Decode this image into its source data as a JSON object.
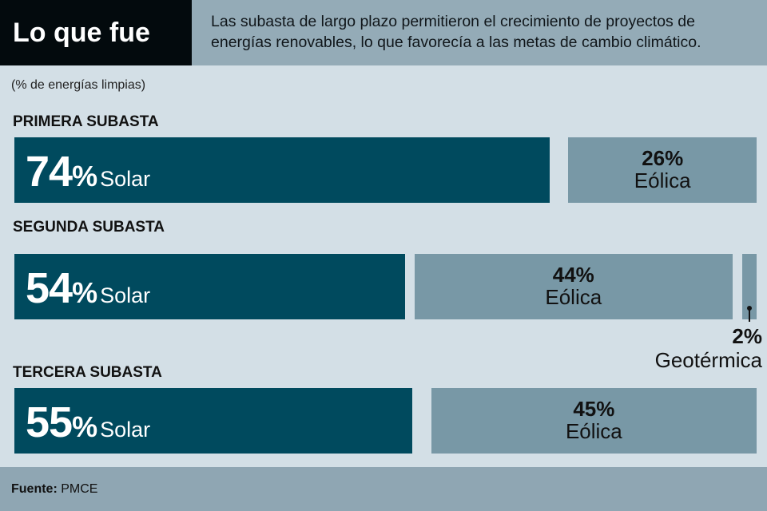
{
  "header": {
    "title": "Lo que fue",
    "description_line1": "Las subasta de largo plazo permitieron el crecimiento de proyectos de",
    "description_line2": "energías renovables, lo que favorecía a las metas de cambio climático."
  },
  "footer": {
    "label": "Fuente:",
    "value": "PMCE"
  },
  "chart_data": {
    "type": "bar",
    "subtitle": "(% de energías limpias)",
    "colors": {
      "Solar": "#004a5e",
      "Eólica": "#7898a6",
      "Geotérmica": "#7898a6"
    },
    "rows": [
      {
        "label": "PRIMERA SUBASTA",
        "segments": [
          {
            "name": "Solar",
            "value": 74,
            "text": "74"
          },
          {
            "name": "Eólica",
            "value": 26,
            "text": "26%"
          }
        ]
      },
      {
        "label": "SEGUNDA SUBASTA",
        "segments": [
          {
            "name": "Solar",
            "value": 54,
            "text": "54"
          },
          {
            "name": "Eólica",
            "value": 44,
            "text": "44%"
          },
          {
            "name": "Geotérmica",
            "value": 2,
            "text": "2%"
          }
        ]
      },
      {
        "label": "TERCERA SUBASTA",
        "segments": [
          {
            "name": "Solar",
            "value": 55,
            "text": "55"
          },
          {
            "name": "Eólica",
            "value": 45,
            "text": "45%"
          }
        ]
      }
    ]
  }
}
